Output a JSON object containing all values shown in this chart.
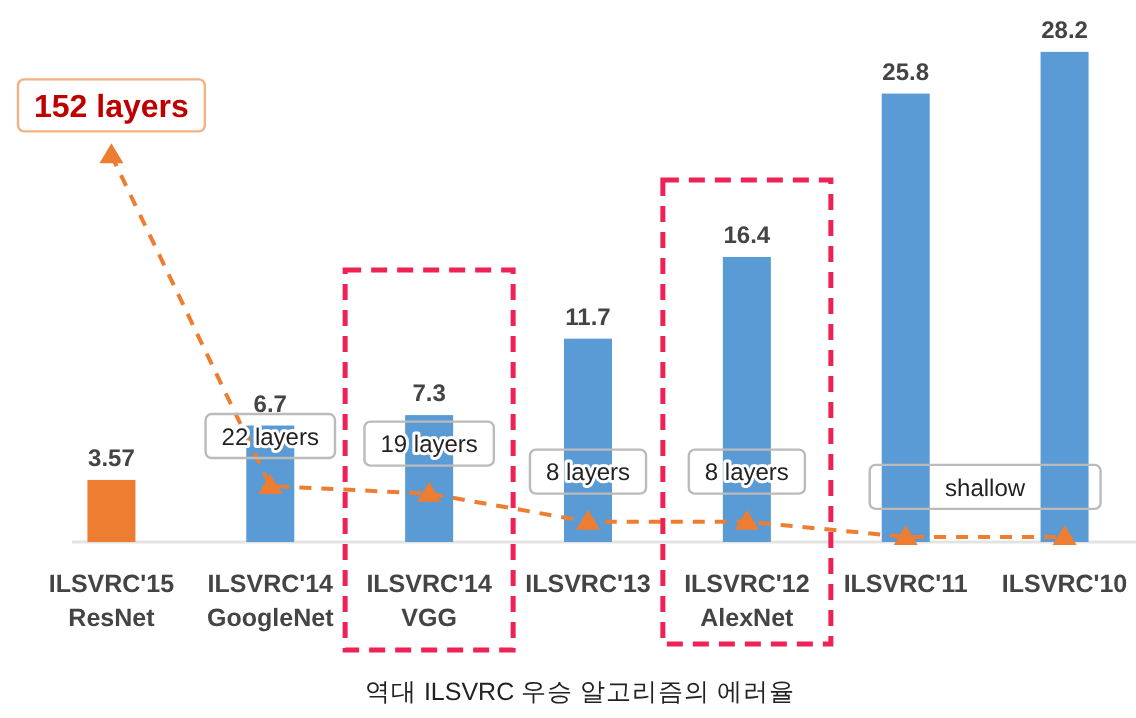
{
  "chart_data": {
    "type": "bar",
    "categories": [
      "ILSVRC'15\nResNet",
      "ILSVRC'14\nGoogleNet",
      "ILSVRC'14\nVGG",
      "ILSVRC'13",
      "ILSVRC'12\nAlexNet",
      "ILSVRC'11",
      "ILSVRC'10"
    ],
    "tick_labels": "x",
    "data_labels": true,
    "grid": false,
    "series": [
      {
        "colors": [
          "#ed7d31",
          "#5b9bd5",
          "#5b9bd5",
          "#5b9bd5",
          "#5b9bd5",
          "#5b9bd5",
          "#5b9bd5"
        ],
        "values": [
          3.57,
          6.7,
          7.3,
          11.7,
          16.4,
          25.8,
          28.2
        ]
      },
      {
        "type": "line",
        "axis": "y2",
        "color": "#ed7d31",
        "marker": "triangle",
        "line_style": "dashed",
        "values": [
          152,
          22,
          19,
          8,
          8,
          2,
          2
        ],
        "value_labels": [
          "152 layers",
          "22 layers",
          "19 layers",
          "8 layers",
          "8 layers",
          "shallow",
          null
        ]
      }
    ],
    "annotations": [
      "역대 ILSVRC 우승 알고리즘의 에러율"
    ]
  }
}
